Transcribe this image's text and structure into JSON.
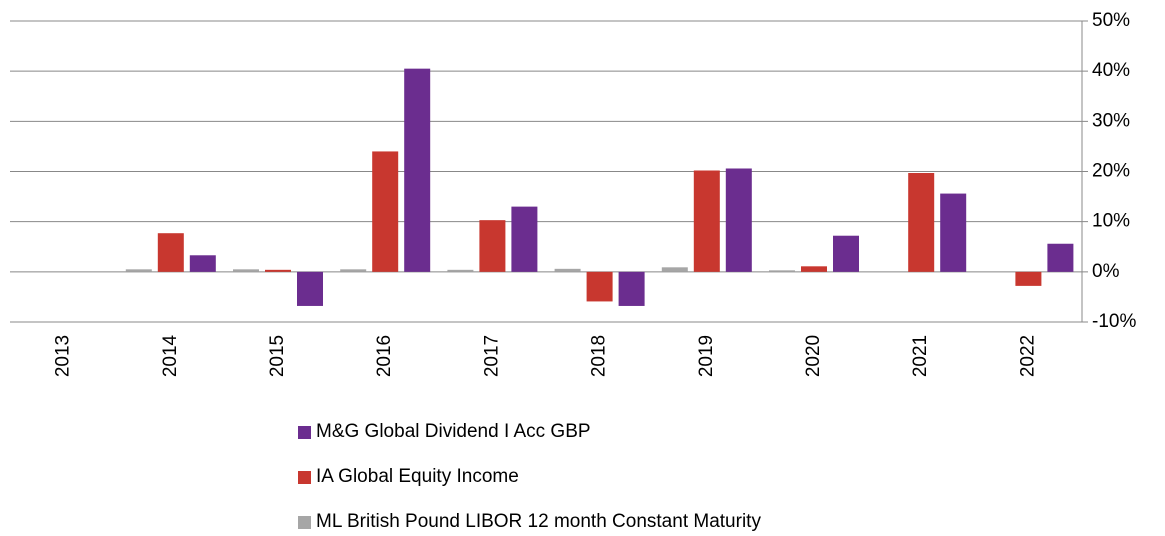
{
  "chart_data": {
    "type": "bar",
    "categories": [
      "2013",
      "2014",
      "2015",
      "2016",
      "2017",
      "2018",
      "2019",
      "2020",
      "2021",
      "2022"
    ],
    "series": [
      {
        "name": "ML British Pound LIBOR 12 month Constant Maturity",
        "color": "#a6a6a6",
        "values": [
          null,
          0.5,
          0.5,
          0.5,
          0.4,
          0.6,
          0.9,
          0.3,
          0.1,
          null
        ]
      },
      {
        "name": "IA Global Equity Income",
        "color": "#c8372f",
        "values": [
          null,
          7.7,
          0.4,
          24.0,
          10.3,
          -5.9,
          20.2,
          1.1,
          19.7,
          -2.8
        ]
      },
      {
        "name": "M&G Global Dividend I Acc GBP",
        "color": "#6b2d8f",
        "values": [
          null,
          3.3,
          -6.8,
          40.5,
          13.0,
          -6.8,
          20.6,
          7.2,
          15.6,
          5.6
        ]
      }
    ],
    "legend_order": [
      2,
      1,
      0
    ],
    "ylim": [
      -10,
      50
    ],
    "yticks": [
      {
        "value": -10,
        "label": "-10%"
      },
      {
        "value": 0,
        "label": "0%"
      },
      {
        "value": 10,
        "label": "10%"
      },
      {
        "value": 20,
        "label": "20%"
      },
      {
        "value": 30,
        "label": "30%"
      },
      {
        "value": 40,
        "label": "40%"
      },
      {
        "value": 50,
        "label": "50%"
      }
    ],
    "grid": true,
    "legend": "bottom"
  }
}
